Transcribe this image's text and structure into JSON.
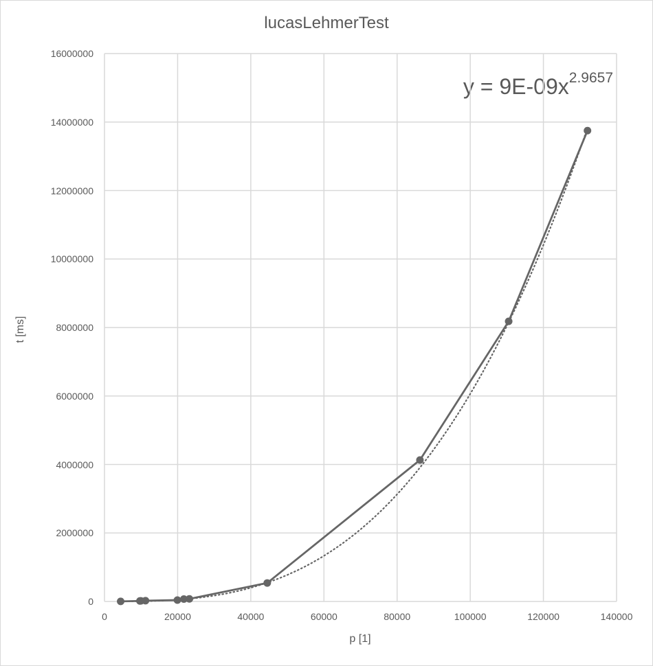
{
  "chart_data": {
    "type": "scatter",
    "title": "lucasLehmerTest",
    "xlabel": "p [1]",
    "ylabel": "t [ms]",
    "xlim": [
      0,
      140000
    ],
    "ylim": [
      0,
      16000000
    ],
    "grid": true,
    "x_ticks": [
      "0",
      "20000",
      "40000",
      "60000",
      "80000",
      "100000",
      "120000",
      "140000"
    ],
    "y_ticks": [
      "0",
      "2000000",
      "4000000",
      "6000000",
      "8000000",
      "10000000",
      "12000000",
      "14000000",
      "16000000"
    ],
    "series": [
      {
        "name": "t",
        "style": "line+markers",
        "color": "#666666",
        "x": [
          4423,
          9689,
          9941,
          11213,
          19937,
          21701,
          23209,
          44497,
          86243,
          110503,
          132049
        ],
        "y": [
          2000,
          15000,
          17000,
          22000,
          40000,
          70000,
          75000,
          540000,
          4130000,
          8180000,
          13750000
        ]
      },
      {
        "name": "Power trendline",
        "style": "dotted",
        "color": "#666666",
        "equation": "y = 9E-09x^2.9657",
        "coef": 9e-09,
        "exponent": 2.9657
      }
    ],
    "annotations": [
      {
        "text_main": "y = 9E-09x",
        "text_sup": "2.9657"
      }
    ],
    "legend": "none"
  }
}
